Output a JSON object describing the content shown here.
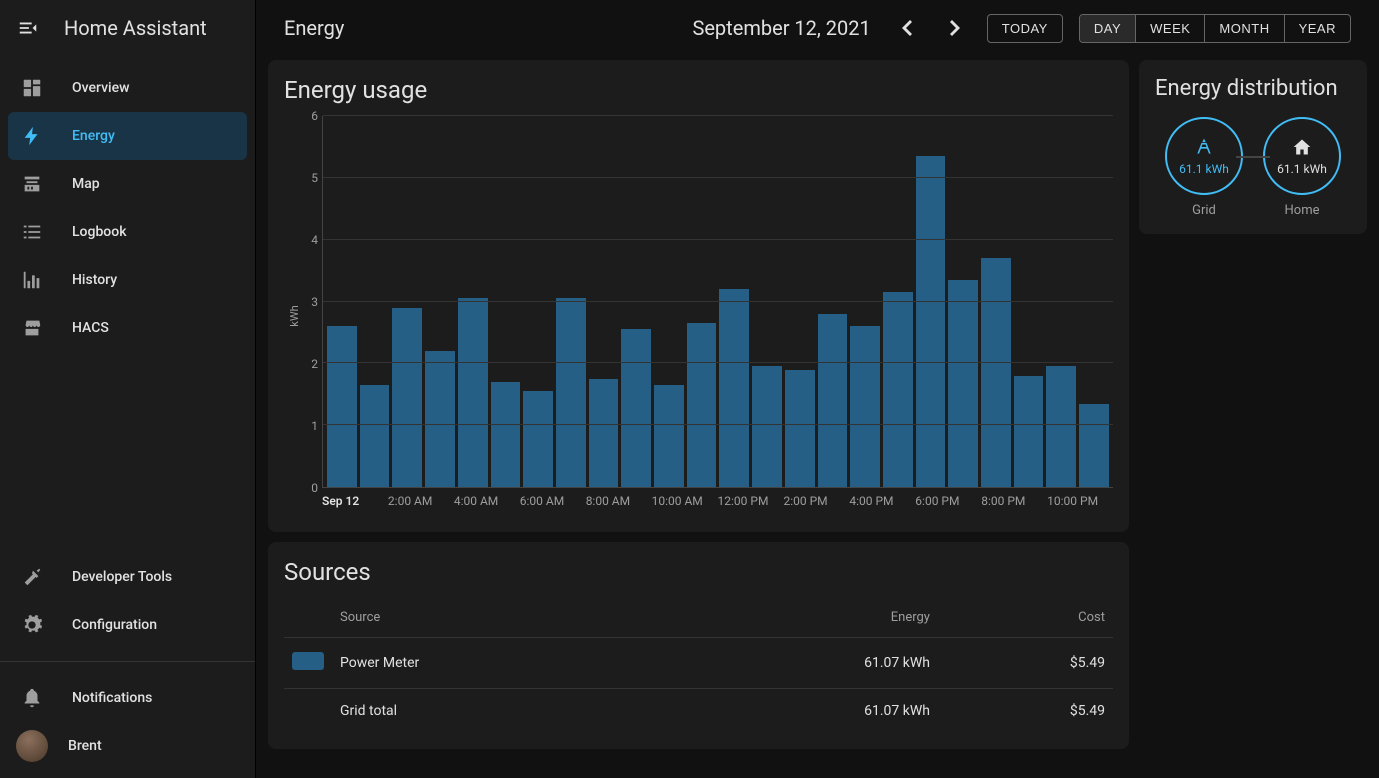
{
  "app": {
    "title": "Home Assistant"
  },
  "sidebar": {
    "items": [
      {
        "id": "overview",
        "label": "Overview",
        "icon": "dashboard"
      },
      {
        "id": "energy",
        "label": "Energy",
        "icon": "bolt",
        "active": true
      },
      {
        "id": "map",
        "label": "Map",
        "icon": "map"
      },
      {
        "id": "logbook",
        "label": "Logbook",
        "icon": "list"
      },
      {
        "id": "history",
        "label": "History",
        "icon": "chart"
      },
      {
        "id": "hacs",
        "label": "HACS",
        "icon": "store"
      }
    ],
    "bottom": [
      {
        "id": "devtools",
        "label": "Developer Tools",
        "icon": "hammer"
      },
      {
        "id": "config",
        "label": "Configuration",
        "icon": "gear"
      }
    ],
    "footer": [
      {
        "id": "notifications",
        "label": "Notifications",
        "icon": "bell"
      },
      {
        "id": "user",
        "label": "Brent",
        "icon": "avatar"
      }
    ]
  },
  "header": {
    "title": "Energy",
    "date": "September 12, 2021",
    "today": "TODAY",
    "ranges": [
      "DAY",
      "WEEK",
      "MONTH",
      "YEAR"
    ],
    "activeRange": "DAY"
  },
  "usage_chart": {
    "title": "Energy usage",
    "type": "bar",
    "ylabel": "kWh",
    "ylim": [
      0,
      6
    ],
    "ytick_step": 1,
    "bar_color": "#265f85",
    "grid_color": "#333333",
    "axis_color": "#444444",
    "background": "#1c1c1c",
    "x_labels": [
      "Sep 12",
      "2:00 AM",
      "4:00 AM",
      "6:00 AM",
      "8:00 AM",
      "10:00 AM",
      "12:00 PM",
      "2:00 PM",
      "4:00 PM",
      "6:00 PM",
      "8:00 PM",
      "10:00 PM"
    ],
    "values": [
      2.6,
      1.65,
      2.9,
      2.2,
      3.05,
      1.7,
      1.55,
      3.05,
      1.75,
      2.55,
      1.65,
      2.65,
      3.2,
      1.95,
      1.9,
      2.8,
      2.6,
      3.15,
      5.35,
      3.35,
      3.7,
      1.8,
      1.95,
      1.35
    ]
  },
  "distribution": {
    "title": "Energy distribution",
    "grid": {
      "label": "Grid",
      "value": "61.1 kWh"
    },
    "home": {
      "label": "Home",
      "value": "61.1 kWh"
    },
    "accent": "#41bdf5"
  },
  "sources": {
    "title": "Sources",
    "columns": [
      "Source",
      "Energy",
      "Cost"
    ],
    "rows": [
      {
        "swatch": "#265f85",
        "source": "Power Meter",
        "energy": "61.07 kWh",
        "cost": "$5.49"
      }
    ],
    "total": {
      "label": "Grid total",
      "energy": "61.07 kWh",
      "cost": "$5.49"
    }
  }
}
